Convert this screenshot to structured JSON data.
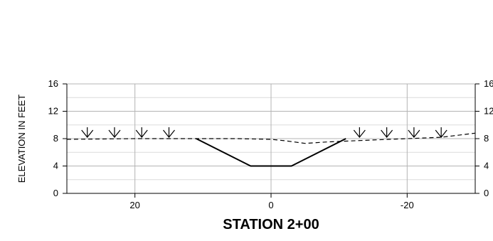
{
  "chart_data": {
    "type": "line",
    "title": "",
    "xlabel": "STATION 2+00",
    "ylabel": "ELEVATION IN FEET",
    "xlim": [
      30,
      -30
    ],
    "ylim": [
      0,
      16
    ],
    "x_reversed": true,
    "x_ticks": [
      20,
      0,
      -20
    ],
    "x_tick_labels": [
      "20",
      "0",
      "-20"
    ],
    "y_ticks": [
      0,
      4,
      8,
      12,
      16
    ],
    "y_tick_labels": [
      "0",
      "4",
      "8",
      "12",
      "16"
    ],
    "y_minor_step": 2,
    "grid": true,
    "right_axis_labels": true,
    "legend": "none",
    "series": [
      {
        "style": "solid",
        "color": "#000000",
        "x": [
          11,
          3,
          -3,
          -11
        ],
        "y": [
          8,
          4,
          4,
          8
        ]
      },
      {
        "style": "dashed",
        "color": "#000000",
        "x": [
          30,
          25,
          20,
          15,
          10,
          5,
          0,
          -2,
          -5,
          -8,
          -10,
          -15,
          -20,
          -25,
          -30
        ],
        "y": [
          7.9,
          7.95,
          8.0,
          8.0,
          8.0,
          8.0,
          7.9,
          7.7,
          7.3,
          7.5,
          7.6,
          7.8,
          8.0,
          8.2,
          8.8
        ]
      }
    ],
    "markers": {
      "symbol": "water-surface",
      "x": [
        27,
        23,
        19,
        15,
        -13,
        -17,
        -21,
        -25
      ],
      "y": [
        8,
        8,
        8,
        8,
        8,
        8,
        8,
        8
      ]
    }
  }
}
